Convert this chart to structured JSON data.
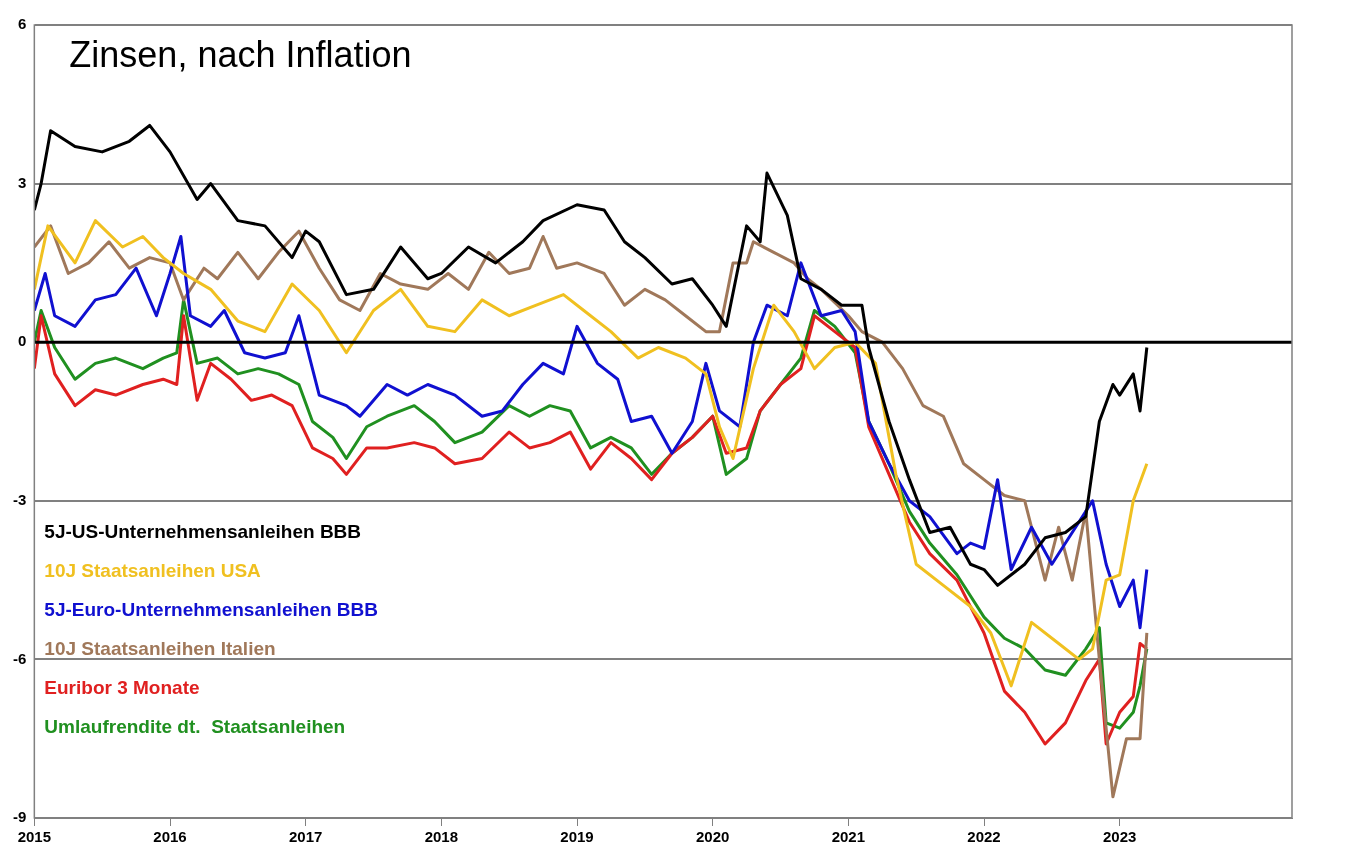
{
  "chart_data": {
    "type": "line",
    "title": "Zinsen, nach Inflation",
    "xlim": [
      2015,
      2024.27
    ],
    "xticks": [
      2015,
      2016,
      2017,
      2018,
      2019,
      2020,
      2021,
      2022,
      2023
    ],
    "ylim": [
      -9,
      6
    ],
    "yticks": [
      -9,
      -6,
      -3,
      0,
      3,
      6
    ],
    "grid": "y",
    "legend": "bottom left",
    "marker": "none",
    "line_style": "solid",
    "ref_lines": [
      {
        "axis": "y",
        "value": 0,
        "color": "#000000"
      }
    ],
    "series": [
      {
        "name": "5J-US-Unternehmensanleihen BBB",
        "color": "#000000",
        "x": [
          2015.0,
          2015.05,
          2015.12,
          2015.3,
          2015.5,
          2015.7,
          2015.85,
          2016.0,
          2016.2,
          2016.3,
          2016.5,
          2016.7,
          2016.9,
          2017.0,
          2017.1,
          2017.3,
          2017.5,
          2017.7,
          2017.9,
          2018.0,
          2018.2,
          2018.4,
          2018.6,
          2018.75,
          2019.0,
          2019.2,
          2019.35,
          2019.5,
          2019.7,
          2019.85,
          2020.0,
          2020.1,
          2020.25,
          2020.35,
          2020.4,
          2020.55,
          2020.65,
          2020.8,
          2020.95,
          2021.1,
          2021.15,
          2021.3,
          2021.45,
          2021.6,
          2021.75,
          2021.9,
          2022.0,
          2022.1,
          2022.3,
          2022.45,
          2022.6,
          2022.75,
          2022.85,
          2022.95,
          2023.0,
          2023.1,
          2023.15,
          2023.2
        ],
        "values": [
          2.5,
          3.0,
          4.0,
          3.7,
          3.6,
          3.8,
          4.1,
          3.6,
          2.7,
          3.0,
          2.3,
          2.2,
          1.6,
          2.1,
          1.9,
          0.9,
          1.0,
          1.8,
          1.2,
          1.3,
          1.8,
          1.5,
          1.9,
          2.3,
          2.6,
          2.5,
          1.9,
          1.6,
          1.1,
          1.2,
          0.7,
          0.3,
          2.2,
          1.9,
          3.2,
          2.4,
          1.2,
          1.0,
          0.7,
          0.7,
          -0.1,
          -1.5,
          -2.6,
          -3.6,
          -3.5,
          -4.2,
          -4.3,
          -4.6,
          -4.2,
          -3.7,
          -3.6,
          -3.3,
          -1.5,
          -0.8,
          -1.0,
          -0.6,
          -1.3,
          -0.1
        ]
      },
      {
        "name": "10J Staatsanleihen USA",
        "color": "#f0c020",
        "x": [
          2015.0,
          2015.1,
          2015.3,
          2015.45,
          2015.65,
          2015.8,
          2015.95,
          2016.1,
          2016.3,
          2016.5,
          2016.7,
          2016.9,
          2017.1,
          2017.3,
          2017.5,
          2017.7,
          2017.9,
          2018.1,
          2018.3,
          2018.5,
          2018.7,
          2018.9,
          2019.05,
          2019.25,
          2019.45,
          2019.6,
          2019.8,
          2019.95,
          2020.05,
          2020.15,
          2020.3,
          2020.45,
          2020.6,
          2020.75,
          2020.9,
          2021.05,
          2021.2,
          2021.35,
          2021.5,
          2021.7,
          2021.9,
          2022.05,
          2022.2,
          2022.35,
          2022.55,
          2022.7,
          2022.8,
          2022.9,
          2023.0,
          2023.1,
          2023.2
        ],
        "values": [
          1.0,
          2.2,
          1.5,
          2.3,
          1.8,
          2.0,
          1.6,
          1.3,
          1.0,
          0.4,
          0.2,
          1.1,
          0.6,
          -0.2,
          0.6,
          1.0,
          0.3,
          0.2,
          0.8,
          0.5,
          0.7,
          0.9,
          0.6,
          0.2,
          -0.3,
          -0.1,
          -0.3,
          -0.6,
          -1.6,
          -2.2,
          -0.5,
          0.7,
          0.2,
          -0.5,
          -0.1,
          0.0,
          -0.4,
          -2.5,
          -4.2,
          -4.6,
          -5.0,
          -5.5,
          -6.5,
          -5.3,
          -5.7,
          -6.0,
          -5.8,
          -4.5,
          -4.4,
          -3.0,
          -2.3
        ]
      },
      {
        "name": "5J-Euro-Unternehmensanleihen BBB",
        "color": "#1010d0",
        "x": [
          2015.0,
          2015.08,
          2015.15,
          2015.3,
          2015.45,
          2015.6,
          2015.75,
          2015.9,
          2016.0,
          2016.08,
          2016.15,
          2016.3,
          2016.4,
          2016.55,
          2016.7,
          2016.85,
          2016.95,
          2017.1,
          2017.3,
          2017.4,
          2017.6,
          2017.75,
          2017.9,
          2018.1,
          2018.3,
          2018.45,
          2018.6,
          2018.75,
          2018.9,
          2019.0,
          2019.15,
          2019.3,
          2019.4,
          2019.55,
          2019.7,
          2019.85,
          2019.95,
          2020.05,
          2020.2,
          2020.3,
          2020.4,
          2020.55,
          2020.65,
          2020.8,
          2020.95,
          2021.05,
          2021.15,
          2021.3,
          2021.45,
          2021.6,
          2021.8,
          2021.9,
          2022.0,
          2022.1,
          2022.2,
          2022.35,
          2022.5,
          2022.65,
          2022.8,
          2022.9,
          2023.0,
          2023.1,
          2023.15,
          2023.2
        ],
        "values": [
          0.6,
          1.3,
          0.5,
          0.3,
          0.8,
          0.9,
          1.4,
          0.5,
          1.3,
          2.0,
          0.5,
          0.3,
          0.6,
          -0.2,
          -0.3,
          -0.2,
          0.5,
          -1.0,
          -1.2,
          -1.4,
          -0.8,
          -1.0,
          -0.8,
          -1.0,
          -1.4,
          -1.3,
          -0.8,
          -0.4,
          -0.6,
          0.3,
          -0.4,
          -0.7,
          -1.5,
          -1.4,
          -2.1,
          -1.5,
          -0.4,
          -1.3,
          -1.6,
          0.0,
          0.7,
          0.5,
          1.5,
          0.5,
          0.6,
          0.2,
          -1.5,
          -2.3,
          -3.0,
          -3.3,
          -4.0,
          -3.8,
          -3.9,
          -2.6,
          -4.3,
          -3.5,
          -4.2,
          -3.6,
          -3.0,
          -4.2,
          -5.0,
          -4.5,
          -5.4,
          -4.3
        ]
      },
      {
        "name": "10J Staatsanleihen Italien",
        "color": "#a0785a",
        "x": [
          2015.0,
          2015.12,
          2015.25,
          2015.4,
          2015.55,
          2015.7,
          2015.85,
          2016.0,
          2016.1,
          2016.25,
          2016.35,
          2016.5,
          2016.65,
          2016.8,
          2016.95,
          2017.1,
          2017.25,
          2017.4,
          2017.55,
          2017.7,
          2017.9,
          2018.05,
          2018.2,
          2018.35,
          2018.5,
          2018.65,
          2018.75,
          2018.85,
          2019.0,
          2019.2,
          2019.35,
          2019.5,
          2019.65,
          2019.8,
          2019.95,
          2020.05,
          2020.15,
          2020.25,
          2020.3,
          2020.45,
          2020.6,
          2020.7,
          2020.8,
          2021.0,
          2021.1,
          2021.25,
          2021.4,
          2021.55,
          2021.7,
          2021.85,
          2022.0,
          2022.15,
          2022.3,
          2022.45,
          2022.55,
          2022.65,
          2022.75,
          2022.85,
          2022.95,
          2023.05,
          2023.15,
          2023.2
        ],
        "values": [
          1.8,
          2.2,
          1.3,
          1.5,
          1.9,
          1.4,
          1.6,
          1.5,
          0.8,
          1.4,
          1.2,
          1.7,
          1.2,
          1.7,
          2.1,
          1.4,
          0.8,
          0.6,
          1.3,
          1.1,
          1.0,
          1.3,
          1.0,
          1.7,
          1.3,
          1.4,
          2.0,
          1.4,
          1.5,
          1.3,
          0.7,
          1.0,
          0.8,
          0.5,
          0.2,
          0.2,
          1.5,
          1.5,
          1.9,
          1.7,
          1.5,
          1.2,
          1.0,
          0.5,
          0.2,
          0.0,
          -0.5,
          -1.2,
          -1.4,
          -2.3,
          -2.6,
          -2.9,
          -3.0,
          -4.5,
          -3.5,
          -4.5,
          -3.2,
          -6.0,
          -8.6,
          -7.5,
          -7.5,
          -5.5
        ]
      },
      {
        "name": "Euribor 3 Monate",
        "color": "#e02020",
        "x": [
          2015.0,
          2015.05,
          2015.15,
          2015.3,
          2015.45,
          2015.6,
          2015.8,
          2015.95,
          2016.05,
          2016.1,
          2016.2,
          2016.3,
          2016.45,
          2016.6,
          2016.75,
          2016.9,
          2017.05,
          2017.2,
          2017.3,
          2017.45,
          2017.6,
          2017.8,
          2017.95,
          2018.1,
          2018.3,
          2018.5,
          2018.65,
          2018.8,
          2018.95,
          2019.1,
          2019.25,
          2019.4,
          2019.55,
          2019.7,
          2019.85,
          2020.0,
          2020.1,
          2020.25,
          2020.35,
          2020.5,
          2020.65,
          2020.75,
          2020.9,
          2021.05,
          2021.15,
          2021.3,
          2021.45,
          2021.6,
          2021.8,
          2022.0,
          2022.15,
          2022.3,
          2022.45,
          2022.6,
          2022.75,
          2022.85,
          2022.9,
          2023.0,
          2023.1,
          2023.15,
          2023.2
        ],
        "values": [
          -0.5,
          0.5,
          -0.6,
          -1.2,
          -0.9,
          -1.0,
          -0.8,
          -0.7,
          -0.8,
          0.5,
          -1.1,
          -0.4,
          -0.7,
          -1.1,
          -1.0,
          -1.2,
          -2.0,
          -2.2,
          -2.5,
          -2.0,
          -2.0,
          -1.9,
          -2.0,
          -2.3,
          -2.2,
          -1.7,
          -2.0,
          -1.9,
          -1.7,
          -2.4,
          -1.9,
          -2.2,
          -2.6,
          -2.1,
          -1.8,
          -1.4,
          -2.1,
          -2.0,
          -1.3,
          -0.8,
          -0.5,
          0.5,
          0.2,
          -0.1,
          -1.6,
          -2.5,
          -3.4,
          -4.0,
          -4.5,
          -5.5,
          -6.6,
          -7.0,
          -7.6,
          -7.2,
          -6.4,
          -6.0,
          -7.6,
          -7.0,
          -6.7,
          -5.7,
          -5.8
        ]
      },
      {
        "name": "Umlaufrendite dt.  Staatsanleihen",
        "color": "#209020",
        "x": [
          2015.0,
          2015.05,
          2015.15,
          2015.3,
          2015.45,
          2015.6,
          2015.8,
          2015.95,
          2016.05,
          2016.1,
          2016.2,
          2016.35,
          2016.5,
          2016.65,
          2016.8,
          2016.95,
          2017.05,
          2017.2,
          2017.3,
          2017.45,
          2017.6,
          2017.8,
          2017.95,
          2018.1,
          2018.3,
          2018.5,
          2018.65,
          2018.8,
          2018.95,
          2019.1,
          2019.25,
          2019.4,
          2019.55,
          2019.7,
          2019.85,
          2020.0,
          2020.1,
          2020.25,
          2020.35,
          2020.5,
          2020.65,
          2020.75,
          2020.9,
          2021.05,
          2021.15,
          2021.3,
          2021.45,
          2021.6,
          2021.8,
          2022.0,
          2022.15,
          2022.3,
          2022.45,
          2022.6,
          2022.75,
          2022.85,
          2022.9,
          2023.0,
          2023.1,
          2023.15,
          2023.2
        ],
        "values": [
          0.0,
          0.6,
          -0.1,
          -0.7,
          -0.4,
          -0.3,
          -0.5,
          -0.3,
          -0.2,
          0.8,
          -0.4,
          -0.3,
          -0.6,
          -0.5,
          -0.6,
          -0.8,
          -1.5,
          -1.8,
          -2.2,
          -1.6,
          -1.4,
          -1.2,
          -1.5,
          -1.9,
          -1.7,
          -1.2,
          -1.4,
          -1.2,
          -1.3,
          -2.0,
          -1.8,
          -2.0,
          -2.5,
          -2.1,
          -1.8,
          -1.4,
          -2.5,
          -2.2,
          -1.3,
          -0.8,
          -0.3,
          0.6,
          0.3,
          -0.2,
          -1.5,
          -2.3,
          -3.2,
          -3.8,
          -4.4,
          -5.2,
          -5.6,
          -5.8,
          -6.2,
          -6.3,
          -5.8,
          -5.4,
          -7.2,
          -7.3,
          -7.0,
          -6.5,
          -5.8
        ]
      }
    ]
  }
}
